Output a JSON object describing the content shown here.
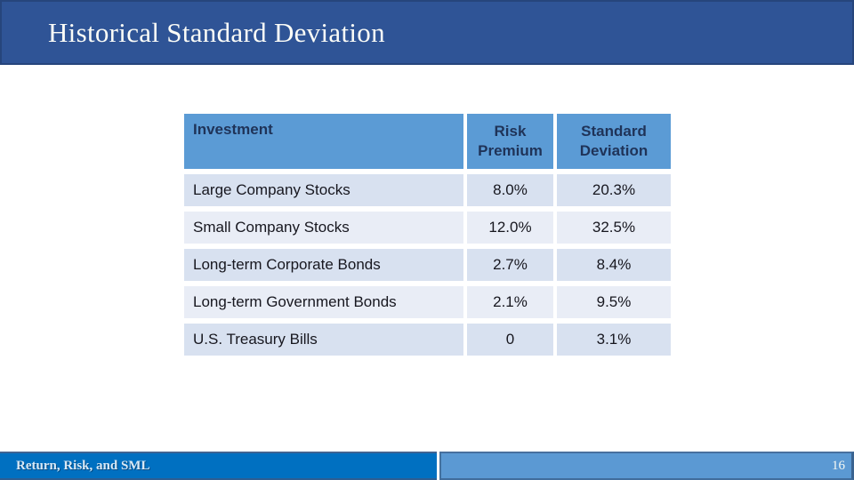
{
  "title_bar": {
    "title": "Historical Standard Deviation"
  },
  "table": {
    "headers": {
      "investment": "Investment",
      "risk_premium": "Risk Premium",
      "standard_deviation": "Standard Deviation"
    },
    "rows": [
      {
        "investment": "Large Company Stocks",
        "risk_premium": "8.0%",
        "standard_deviation": "20.3%"
      },
      {
        "investment": "Small Company Stocks",
        "risk_premium": "12.0%",
        "standard_deviation": "32.5%"
      },
      {
        "investment": "Long-term Corporate Bonds",
        "risk_premium": "2.7%",
        "standard_deviation": "8.4%"
      },
      {
        "investment": "Long-term Government Bonds",
        "risk_premium": "2.1%",
        "standard_deviation": "9.5%"
      },
      {
        "investment": "U.S. Treasury Bills",
        "risk_premium": "0",
        "standard_deviation": "3.1%"
      }
    ]
  },
  "footer": {
    "left_label": "Return, Risk, and SML",
    "page_number": "16"
  },
  "colors": {
    "title_bar_bg": "#2F5496",
    "title_bar_border": "#26457C",
    "title_text": "#FBFCF7",
    "table_header_bg": "#5B9BD5",
    "table_header_text": "#1F3358",
    "row_band_dark": "#D8E1F0",
    "row_band_light": "#E9EDF6",
    "footer_left_bg": "#0070C1",
    "footer_right_bg": "#5B99D3",
    "footer_text": "#D9E9F6",
    "page_number_text": "#F6F9F4"
  }
}
